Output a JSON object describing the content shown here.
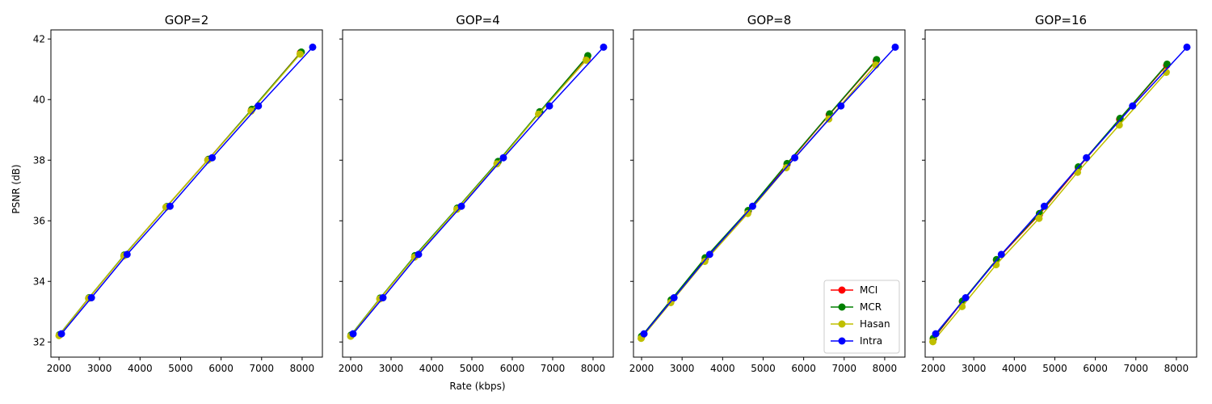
{
  "figure": {
    "ylabel": "PSNR (dB)",
    "xlabel": "Rate (kbps)"
  },
  "legend": {
    "placement": "lower-right",
    "entries": [
      {
        "name": "MCI",
        "color": "#ff0000"
      },
      {
        "name": "MCR",
        "color": "#008000"
      },
      {
        "name": "Hasan",
        "color": "#bfbf00"
      },
      {
        "name": "Intra",
        "color": "#0000ff"
      }
    ]
  },
  "chart_data": [
    {
      "type": "line",
      "title": "GOP=2",
      "xlabel": "",
      "ylabel": "PSNR (dB)",
      "xlim": [
        1800,
        8500
      ],
      "ylim": [
        31.5,
        42.3
      ],
      "xticks": [
        "2000",
        "3000",
        "4000",
        "5000",
        "6000",
        "7000",
        "8000"
      ],
      "yticks": [
        "32",
        "34",
        "36",
        "38",
        "40",
        "42"
      ],
      "series": [
        {
          "name": "MCI",
          "color": "#ff0000",
          "x": [
            2010,
            2740,
            3610,
            4650,
            5680,
            6750,
            7960
          ],
          "y": [
            32.23,
            33.45,
            34.86,
            36.46,
            38.02,
            39.66,
            41.55
          ]
        },
        {
          "name": "MCR",
          "color": "#008000",
          "x": [
            2010,
            2740,
            3610,
            4660,
            5690,
            6760,
            7980
          ],
          "y": [
            32.24,
            33.46,
            34.87,
            36.47,
            38.03,
            39.68,
            41.57
          ]
        },
        {
          "name": "Hasan",
          "color": "#bfbf00",
          "x": [
            2000,
            2730,
            3600,
            4640,
            5670,
            6740,
            7950
          ],
          "y": [
            32.21,
            33.44,
            34.84,
            36.45,
            38.0,
            39.62,
            41.5
          ]
        },
        {
          "name": "Intra",
          "color": "#0000ff",
          "x": [
            2060,
            2800,
            3680,
            4740,
            5780,
            6920,
            8260
          ],
          "y": [
            32.27,
            33.46,
            34.89,
            36.48,
            38.08,
            39.79,
            41.73
          ]
        }
      ]
    },
    {
      "type": "line",
      "title": "GOP=4",
      "xlabel": "Rate (kbps)",
      "ylabel": "",
      "xlim": [
        1800,
        8500
      ],
      "ylim": [
        31.5,
        42.3
      ],
      "xticks": [
        "2000",
        "3000",
        "4000",
        "5000",
        "6000",
        "7000",
        "8000"
      ],
      "yticks": [
        "32",
        "34",
        "36",
        "38",
        "40",
        "42"
      ],
      "series": [
        {
          "name": "MCI",
          "color": "#ff0000",
          "x": [
            2010,
            2730,
            3590,
            4640,
            5640,
            6670,
            7850
          ],
          "y": [
            32.22,
            33.43,
            34.83,
            36.41,
            37.93,
            39.56,
            41.35
          ]
        },
        {
          "name": "MCR",
          "color": "#008000",
          "x": [
            2010,
            2730,
            3590,
            4640,
            5650,
            6680,
            7870
          ],
          "y": [
            32.23,
            33.45,
            34.85,
            36.42,
            37.96,
            39.6,
            41.45
          ]
        },
        {
          "name": "Hasan",
          "color": "#bfbf00",
          "x": [
            2000,
            2720,
            3580,
            4630,
            5620,
            6650,
            7830
          ],
          "y": [
            32.19,
            33.42,
            34.8,
            36.38,
            37.88,
            39.52,
            41.3
          ]
        },
        {
          "name": "Intra",
          "color": "#0000ff",
          "x": [
            2060,
            2800,
            3680,
            4740,
            5780,
            6920,
            8260
          ],
          "y": [
            32.27,
            33.46,
            34.89,
            36.48,
            38.08,
            39.79,
            41.73
          ]
        }
      ]
    },
    {
      "type": "line",
      "title": "GOP=8",
      "xlabel": "",
      "ylabel": "",
      "xlim": [
        1800,
        8500
      ],
      "ylim": [
        31.5,
        42.3
      ],
      "xticks": [
        "2000",
        "3000",
        "4000",
        "5000",
        "6000",
        "7000",
        "8000"
      ],
      "yticks": [
        "32",
        "34",
        "36",
        "38",
        "40",
        "42"
      ],
      "series": [
        {
          "name": "MCI",
          "color": "#ff0000",
          "x": [
            2000,
            2730,
            3570,
            4630,
            5590,
            6630,
            7790
          ],
          "y": [
            32.17,
            33.37,
            34.75,
            36.31,
            37.86,
            39.5,
            41.28
          ]
        },
        {
          "name": "MCR",
          "color": "#008000",
          "x": [
            2000,
            2730,
            3570,
            4630,
            5590,
            6640,
            7800
          ],
          "y": [
            32.19,
            33.39,
            34.78,
            36.34,
            37.89,
            39.53,
            41.32
          ]
        },
        {
          "name": "Hasan",
          "color": "#bfbf00",
          "x": [
            1990,
            2720,
            3560,
            4620,
            5570,
            6620,
            7780
          ],
          "y": [
            32.12,
            33.3,
            34.66,
            36.24,
            37.75,
            39.36,
            41.14
          ]
        },
        {
          "name": "Intra",
          "color": "#0000ff",
          "x": [
            2060,
            2800,
            3680,
            4740,
            5780,
            6920,
            8260
          ],
          "y": [
            32.27,
            33.46,
            34.89,
            36.48,
            38.08,
            39.79,
            41.73
          ]
        }
      ]
    },
    {
      "type": "line",
      "title": "GOP=16",
      "xlabel": "",
      "ylabel": "",
      "xlim": [
        1800,
        8500
      ],
      "ylim": [
        31.5,
        42.3
      ],
      "xticks": [
        "2000",
        "3000",
        "4000",
        "5000",
        "6000",
        "7000",
        "8000"
      ],
      "yticks": [
        "32",
        "34",
        "36",
        "38",
        "40",
        "42"
      ],
      "series": [
        {
          "name": "MCI",
          "color": "#ff0000",
          "x": [
            2000,
            2720,
            3560,
            4620,
            5580,
            6600,
            7760
          ],
          "y": [
            32.1,
            33.33,
            34.7,
            36.21,
            37.75,
            39.35,
            41.13
          ]
        },
        {
          "name": "MCR",
          "color": "#008000",
          "x": [
            2000,
            2720,
            3560,
            4620,
            5580,
            6610,
            7770
          ],
          "y": [
            32.12,
            33.35,
            34.72,
            36.24,
            37.78,
            39.38,
            41.17
          ]
        },
        {
          "name": "Hasan",
          "color": "#bfbf00",
          "x": [
            1990,
            2710,
            3550,
            4610,
            5560,
            6590,
            7750
          ],
          "y": [
            32.01,
            33.17,
            34.55,
            36.08,
            37.6,
            39.16,
            40.9
          ]
        },
        {
          "name": "Intra",
          "color": "#0000ff",
          "x": [
            2060,
            2800,
            3680,
            4740,
            5780,
            6920,
            8260
          ],
          "y": [
            32.27,
            33.46,
            34.89,
            36.48,
            38.08,
            39.79,
            41.73
          ]
        }
      ]
    }
  ]
}
